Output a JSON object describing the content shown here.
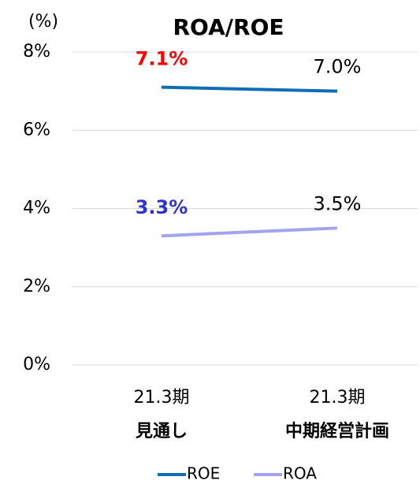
{
  "chart_data": {
    "type": "line",
    "title": "ROA/ROE",
    "y_unit_label": "(%)",
    "categories": [
      [
        "21.3期",
        "見通し"
      ],
      [
        "21.3期",
        "中期経営計画"
      ]
    ],
    "series": [
      {
        "name": "ROE",
        "color": "#0f6db5",
        "values": [
          7.1,
          7.0
        ],
        "value_labels": [
          "7.1%",
          "7.0%"
        ],
        "value_label_colors": [
          "#ff0000",
          "#000000"
        ]
      },
      {
        "name": "ROA",
        "color": "#a3a3f0",
        "values": [
          3.3,
          3.5
        ],
        "value_labels": [
          "3.3%",
          "3.5%"
        ],
        "value_label_colors": [
          "#3333cc",
          "#000000"
        ]
      }
    ],
    "ylim": [
      0,
      8
    ],
    "yticks": [
      {
        "value": 0,
        "label": "0%"
      },
      {
        "value": 2,
        "label": "2%"
      },
      {
        "value": 4,
        "label": "4%"
      },
      {
        "value": 6,
        "label": "6%"
      },
      {
        "value": 8,
        "label": "8%"
      }
    ],
    "grid": true,
    "legend": "bottom"
  }
}
